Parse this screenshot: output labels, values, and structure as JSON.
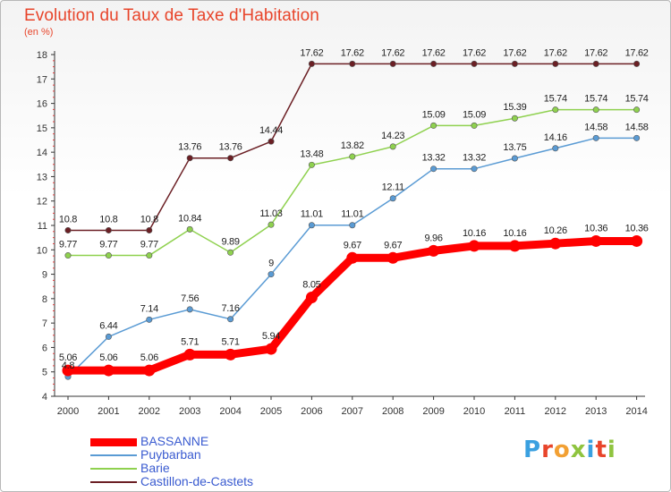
{
  "title": "Evolution du Taux de Taxe d'Habitation",
  "unit": "(en %)",
  "logo": {
    "text": "Proxiti",
    "colors": [
      "#3aa0e0",
      "#e8452b",
      "#f2a033",
      "#8fc43f",
      "#3aa0e0",
      "#e8452b",
      "#8fc43f"
    ]
  },
  "chart_data": {
    "type": "line",
    "x": [
      "2000",
      "2001",
      "2002",
      "2003",
      "2004",
      "2005",
      "2006",
      "2007",
      "2008",
      "2009",
      "2010",
      "2011",
      "2012",
      "2013",
      "2014"
    ],
    "ylim": [
      4,
      18
    ],
    "yticks": [
      "4",
      "5",
      "6",
      "7",
      "8",
      "9",
      "10",
      "11",
      "12",
      "13",
      "14",
      "15",
      "16",
      "17",
      "18"
    ],
    "grid": false,
    "legend_position": "bottom-left",
    "series": [
      {
        "name": "Castillon-de-Castets",
        "color": "#6b1f24",
        "width": 1.5,
        "values": [
          10.8,
          10.8,
          10.8,
          13.76,
          13.76,
          14.44,
          17.62,
          17.62,
          17.62,
          17.62,
          17.62,
          17.62,
          17.62,
          17.62,
          17.62
        ],
        "labels": [
          "10.8",
          "10.8",
          "10.8",
          "13.76",
          "13.76",
          "14.44",
          "17.62",
          "17.62",
          "17.62",
          "17.62",
          "17.62",
          "17.62",
          "17.62",
          "17.62",
          "17.62"
        ]
      },
      {
        "name": "Barie",
        "color": "#8fd14f",
        "width": 1.5,
        "values": [
          9.77,
          9.77,
          9.77,
          10.84,
          9.89,
          11.03,
          13.48,
          13.82,
          14.23,
          15.09,
          15.09,
          15.39,
          15.74,
          15.74,
          15.74
        ],
        "labels": [
          "9.77",
          "9.77",
          "9.77",
          "10.84",
          "9.89",
          "11.03",
          "13.48",
          "13.82",
          "14.23",
          "15.09",
          "15.09",
          "15.39",
          "15.74",
          "15.74",
          "15.74"
        ]
      },
      {
        "name": "Puybarban",
        "color": "#5a9bd4",
        "width": 1.5,
        "values": [
          4.8,
          6.44,
          7.14,
          7.56,
          7.16,
          9,
          11.01,
          11.01,
          12.11,
          13.32,
          13.32,
          13.75,
          14.16,
          14.58,
          14.58
        ],
        "labels": [
          "4.8",
          "6.44",
          "7.14",
          "7.56",
          "7.16",
          "9",
          "11.01",
          "11.01",
          "12.11",
          "13.32",
          "13.32",
          "13.75",
          "14.16",
          "14.58",
          "14.58"
        ]
      },
      {
        "name": "BASSANNE",
        "color": "#ff0000",
        "width": 9,
        "values": [
          5.06,
          5.06,
          5.06,
          5.71,
          5.71,
          5.94,
          8.05,
          9.67,
          9.67,
          9.96,
          10.16,
          10.16,
          10.26,
          10.36,
          10.36
        ],
        "labels": [
          "5.06",
          "5.06",
          "5.06",
          "5.71",
          "5.71",
          "5.94",
          "8.05",
          "9.67",
          "9.67",
          "9.96",
          "10.16",
          "10.16",
          "10.26",
          "10.36",
          "10.36"
        ]
      }
    ],
    "legend_order": [
      "BASSANNE",
      "Puybarban",
      "Barie",
      "Castillon-de-Castets"
    ]
  }
}
